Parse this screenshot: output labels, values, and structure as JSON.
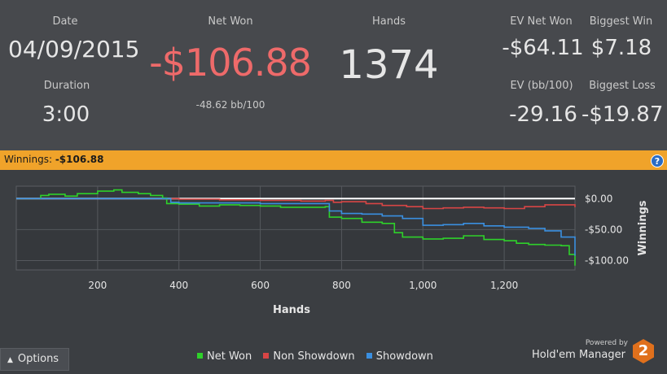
{
  "summary": {
    "date_label": "Date",
    "date_value": "04/09/2015",
    "duration_label": "Duration",
    "duration_value": "3:00",
    "net_won_label": "Net Won",
    "net_won_value": "-$106.88",
    "bb_per_100": "-48.62 bb/100",
    "hands_label": "Hands",
    "hands_value": "1374",
    "ev_net_won_label": "EV Net Won",
    "ev_net_won_value": "-$64.11",
    "biggest_win_label": "Biggest Win",
    "biggest_win_value": "$7.18",
    "ev_bb_label": "EV (bb/100)",
    "ev_bb_value": "-29.16",
    "biggest_loss_label": "Biggest Loss",
    "biggest_loss_value": "-$19.87"
  },
  "winnings_bar": {
    "label": "Winnings:",
    "value": "-$106.88",
    "help_icon": "?"
  },
  "footer": {
    "options_label": "Options",
    "powered_by": "Powered by",
    "brand": "Hold'em Manager",
    "brand_badge": "2"
  },
  "colors": {
    "net_won": "#2ed12a",
    "non_showdown": "#d84545",
    "showdown": "#3a8fe0",
    "loss_text": "#ee6a6a",
    "accent_bar": "#f0a32a"
  },
  "chart_data": {
    "type": "line",
    "xlabel": "Hands",
    "ylabel": "Winnings",
    "xlim": [
      0,
      1374
    ],
    "ylim": [
      -115,
      20
    ],
    "x_ticks": [
      200,
      400,
      600,
      800,
      1000,
      1200
    ],
    "x_tick_labels": [
      "200",
      "400",
      "600",
      "800",
      "1,000",
      "1,200"
    ],
    "y_ticks": [
      0,
      -50,
      -100
    ],
    "y_tick_labels": [
      "$0.00",
      "-$50.00",
      "-$100.00"
    ],
    "legend": [
      "Net Won",
      "Non Showdown",
      "Showdown"
    ],
    "series": [
      {
        "name": "Net Won",
        "color": "#2ed12a",
        "x": [
          0,
          60,
          80,
          120,
          150,
          200,
          240,
          260,
          300,
          330,
          360,
          370,
          400,
          450,
          500,
          550,
          600,
          650,
          700,
          760,
          770,
          800,
          850,
          900,
          930,
          950,
          1000,
          1050,
          1100,
          1150,
          1200,
          1230,
          1260,
          1300,
          1340,
          1360,
          1374
        ],
        "y": [
          0,
          5,
          7,
          4,
          8,
          12,
          14,
          10,
          8,
          5,
          1,
          -8,
          -9,
          -12,
          -10,
          -11,
          -12,
          -14,
          -14,
          -13,
          -30,
          -32,
          -38,
          -40,
          -55,
          -62,
          -65,
          -64,
          -60,
          -66,
          -68,
          -72,
          -74,
          -75,
          -76,
          -90,
          -108
        ]
      },
      {
        "name": "Non Showdown",
        "color": "#d84545",
        "x": [
          0,
          100,
          200,
          300,
          360,
          400,
          500,
          600,
          700,
          760,
          780,
          800,
          860,
          900,
          960,
          1000,
          1050,
          1100,
          1150,
          1200,
          1250,
          1300,
          1374
        ],
        "y": [
          0,
          0,
          0,
          0,
          0,
          -1,
          -2,
          -3,
          -4,
          -3,
          -6,
          -5,
          -8,
          -11,
          -13,
          -16,
          -15,
          -14,
          -15,
          -16,
          -13,
          -10,
          -14
        ]
      },
      {
        "name": "Showdown",
        "color": "#3a8fe0",
        "x": [
          0,
          100,
          200,
          300,
          360,
          380,
          400,
          500,
          600,
          700,
          770,
          800,
          850,
          900,
          950,
          1000,
          1050,
          1100,
          1150,
          1200,
          1260,
          1300,
          1340,
          1374
        ],
        "y": [
          0,
          0,
          0,
          0,
          0,
          -6,
          -7,
          -7,
          -8,
          -8,
          -20,
          -24,
          -25,
          -28,
          -32,
          -43,
          -42,
          -40,
          -44,
          -46,
          -48,
          -52,
          -62,
          -92
        ]
      }
    ]
  }
}
